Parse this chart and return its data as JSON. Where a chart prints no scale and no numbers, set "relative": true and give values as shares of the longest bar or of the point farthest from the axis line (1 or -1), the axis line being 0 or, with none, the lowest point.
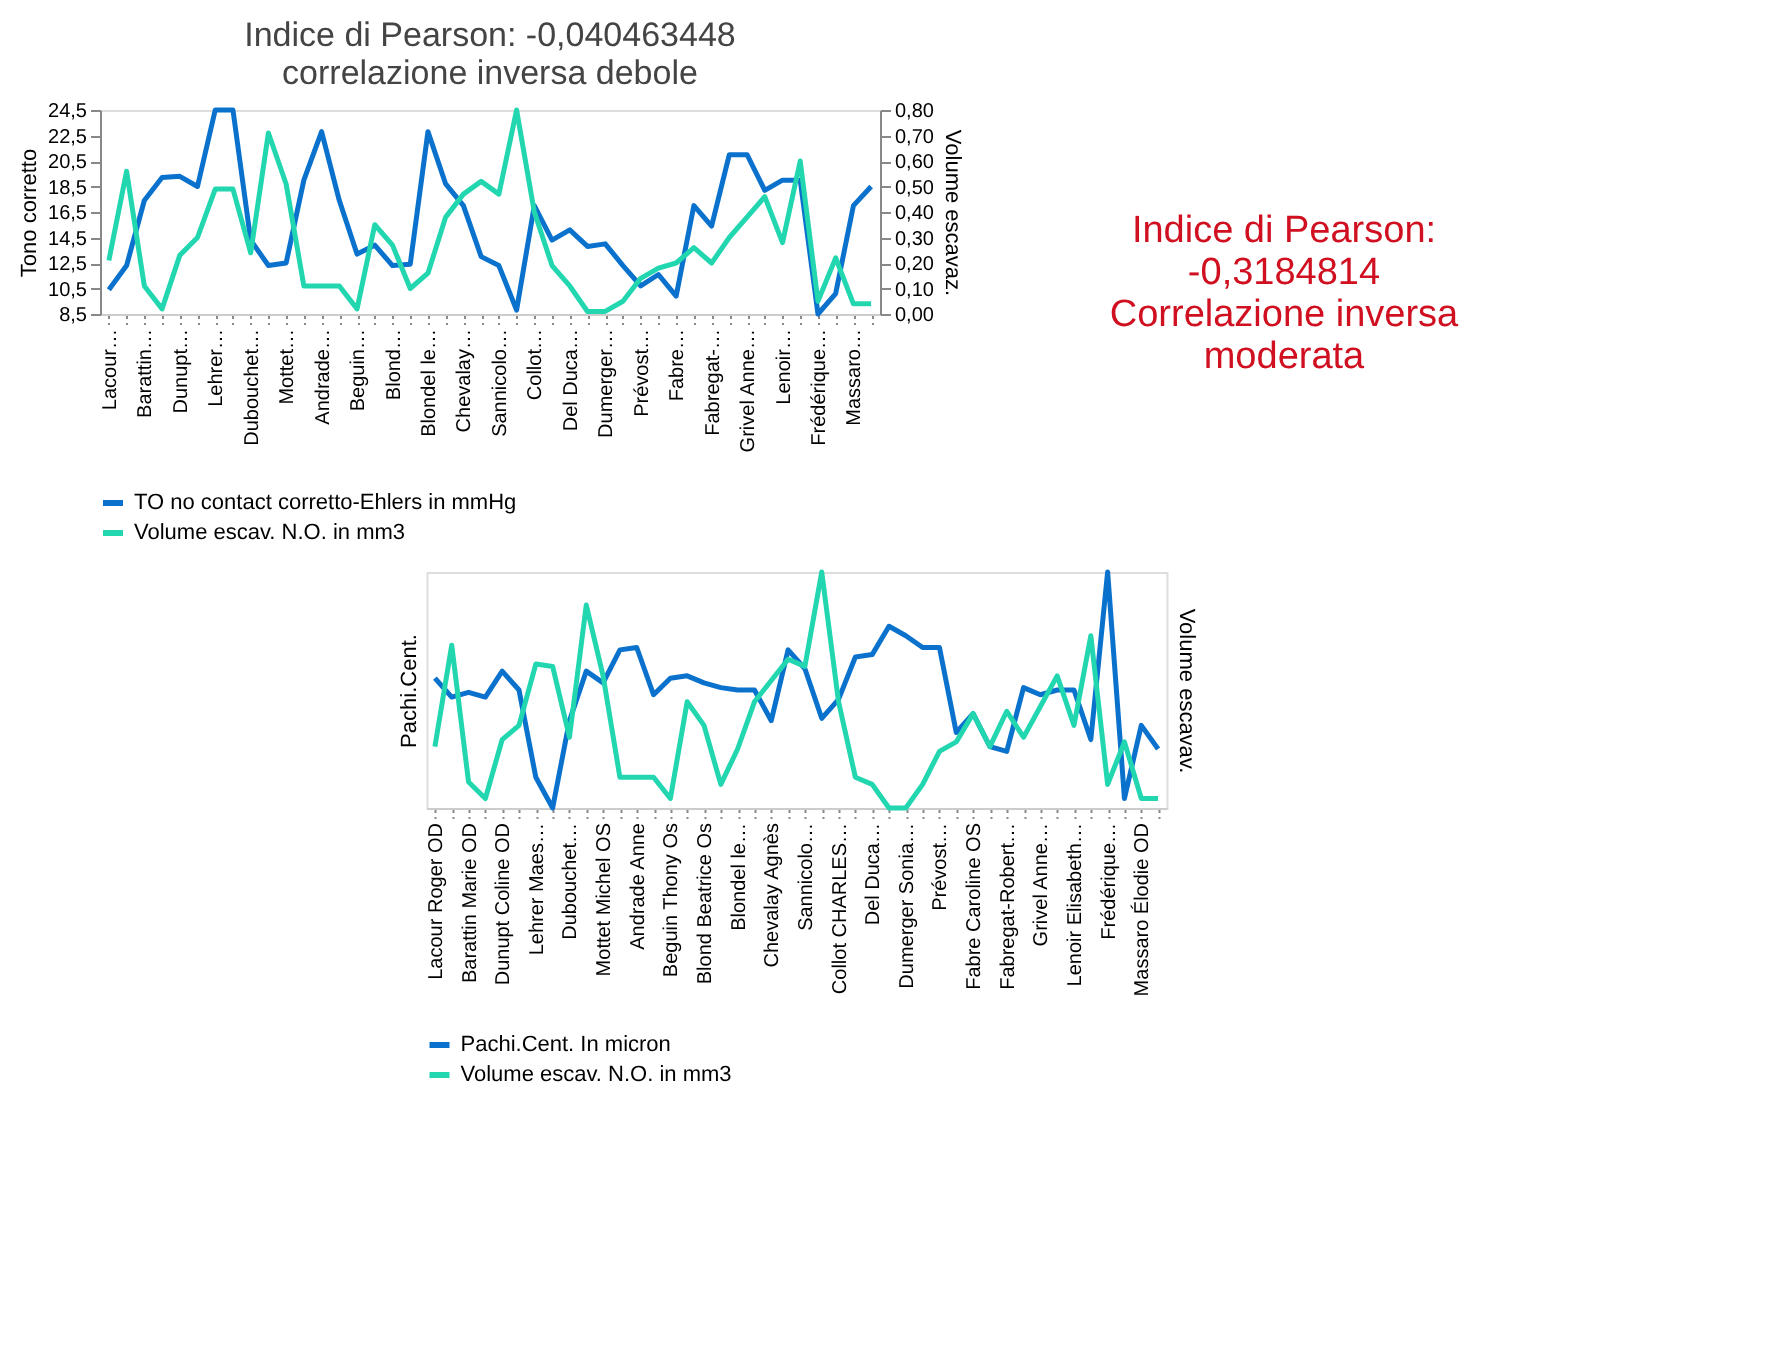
{
  "chart_data": [
    {
      "type": "line",
      "title": [
        "Indice di Pearson: -0,040463448",
        "correlazione inversa debole"
      ],
      "ylabel": "Tono corretto",
      "y2label": "Volume escavaz.",
      "categories": [
        "Lacour…",
        null,
        "Barattin…",
        null,
        "Dunupt…",
        null,
        "Lehrer…",
        null,
        "Dubouchet…",
        null,
        "Mottet…",
        null,
        "Andrade…",
        null,
        "Beguin…",
        null,
        "Blond…",
        null,
        "Blondel le…",
        null,
        "Chevalay…",
        null,
        "Sannicolo…",
        null,
        "Collot…",
        null,
        "Del Duca…",
        null,
        "Dumerger…",
        null,
        "Prévost…",
        null,
        "Fabre…",
        null,
        "Fabregat-…",
        null,
        "Grivel Anne…",
        null,
        "Lenoir…",
        null,
        "Frédérique…",
        null,
        "Massaro…",
        null
      ],
      "series": [
        {
          "name": "TO no contact corretto-Ehlers in mmHg",
          "color": "#0a72cc",
          "values": [
            10.4,
            12.3,
            17.4,
            19.2,
            19.3,
            18.5,
            24.5,
            24.5,
            14.3,
            12.3,
            12.5,
            19.0,
            22.8,
            17.4,
            13.2,
            13.9,
            12.3,
            12.4,
            22.8,
            18.7,
            17.0,
            13.0,
            12.3,
            8.8,
            17.0,
            14.3,
            15.1,
            13.8,
            14.0,
            12.3,
            10.7,
            11.6,
            9.9,
            17.0,
            15.4,
            21.0,
            21.0,
            18.2,
            19.0,
            19.0,
            8.5,
            10.1,
            17.0,
            18.5
          ]
        },
        {
          "name": "Volume escav. N.O. in mm3",
          "color": "#22d6b0",
          "axis": "y2",
          "values": [
            0.21,
            0.56,
            0.11,
            0.02,
            0.23,
            0.3,
            0.49,
            0.49,
            0.24,
            0.71,
            0.51,
            0.11,
            0.11,
            0.11,
            0.02,
            0.35,
            0.27,
            0.1,
            0.16,
            0.38,
            0.47,
            0.52,
            0.47,
            0.8,
            0.4,
            0.19,
            0.11,
            0.01,
            0.01,
            0.05,
            0.14,
            0.18,
            0.2,
            0.26,
            0.2,
            0.3,
            0.38,
            0.46,
            0.28,
            0.6,
            0.05,
            0.22,
            0.04,
            0.04
          ]
        }
      ],
      "ylim": [
        8.5,
        24.5
      ],
      "yticks": [
        {
          "value": 8.5,
          "label": "8,5"
        },
        {
          "value": 10.5,
          "label": "10,5"
        },
        {
          "value": 12.5,
          "label": "12,5"
        },
        {
          "value": 14.5,
          "label": "14,5"
        },
        {
          "value": 16.5,
          "label": "16,5"
        },
        {
          "value": 18.5,
          "label": "18,5"
        },
        {
          "value": 20.5,
          "label": "20,5"
        },
        {
          "value": 22.5,
          "label": "22,5"
        },
        {
          "value": 24.5,
          "label": "24,5"
        }
      ],
      "y2lim": [
        0,
        0.8
      ],
      "y2ticks": [
        {
          "value": 0,
          "label": "0,00"
        },
        {
          "value": 0.1,
          "label": "0,10"
        },
        {
          "value": 0.2,
          "label": "0,20"
        },
        {
          "value": 0.3,
          "label": "0,30"
        },
        {
          "value": 0.4,
          "label": "0,40"
        },
        {
          "value": 0.5,
          "label": "0,50"
        },
        {
          "value": 0.6,
          "label": "0,60"
        },
        {
          "value": 0.7,
          "label": "0,70"
        },
        {
          "value": 0.8,
          "label": "0,80"
        }
      ],
      "legend": "bottom",
      "grid": false,
      "marker": "none",
      "line_style": "solid"
    },
    {
      "type": "line",
      "ylabel": "Pachi.Cent.",
      "y2label": "Volume escavav.",
      "relative": true,
      "annotations": [
        "Indice di Pearson: -0,3184814 Correlazione inversa moderata"
      ],
      "categories": [
        "Lacour Roger OD",
        null,
        "Barattin Marie OD",
        null,
        "Dunupt Coline OD",
        null,
        "Lehrer Maes…",
        null,
        "Dubouchet…",
        null,
        "Mottet Michel OS",
        null,
        "Andrade Anne",
        null,
        "Beguin Thony Os",
        null,
        "Blond Beatrice Os",
        null,
        "Blondel le…",
        null,
        "Chevalay Agnès",
        null,
        "Sannicolo…",
        null,
        "Collot CHARLES…",
        null,
        "Del Duca…",
        null,
        "Dumerger Sonia…",
        null,
        "Prévost…",
        null,
        "Fabre Caroline OS",
        null,
        "Fabregat-Robert…",
        null,
        "Grivel Anne…",
        null,
        "Lenoir Elisabeth…",
        null,
        "Frédérique…",
        null,
        "Massaro Élodie OD",
        null
      ],
      "series": [
        {
          "name": "Pachi.Cent. In micron",
          "color": "#0a72cc",
          "values": [
            0.55,
            0.47,
            0.49,
            0.47,
            0.58,
            0.5,
            0.13,
            0.0,
            0.37,
            0.58,
            0.53,
            0.67,
            0.68,
            0.48,
            0.55,
            0.56,
            0.53,
            0.51,
            0.5,
            0.5,
            0.37,
            0.67,
            0.59,
            0.38,
            0.46,
            0.64,
            0.65,
            0.77,
            0.73,
            0.68,
            0.68,
            0.32,
            0.4,
            0.26,
            0.24,
            0.51,
            0.48,
            0.5,
            0.5,
            0.29,
            1.0,
            0.04,
            0.35,
            0.25
          ]
        },
        {
          "name": "Volume escav. N.O. in mm3",
          "color": "#22d6b0",
          "axis": "y2",
          "values": [
            0.26,
            0.69,
            0.11,
            0.04,
            0.29,
            0.35,
            0.61,
            0.6,
            0.3,
            0.86,
            0.56,
            0.13,
            0.13,
            0.13,
            0.04,
            0.45,
            0.35,
            0.1,
            0.25,
            0.45,
            0.54,
            0.63,
            0.6,
            1.0,
            0.45,
            0.13,
            0.1,
            0.0,
            0.0,
            0.1,
            0.24,
            0.28,
            0.4,
            0.26,
            0.41,
            0.3,
            0.43,
            0.56,
            0.35,
            0.73,
            0.1,
            0.28,
            0.04,
            0.04
          ]
        }
      ],
      "legend": "bottom",
      "grid": false,
      "marker": "none",
      "line_style": "solid"
    }
  ]
}
